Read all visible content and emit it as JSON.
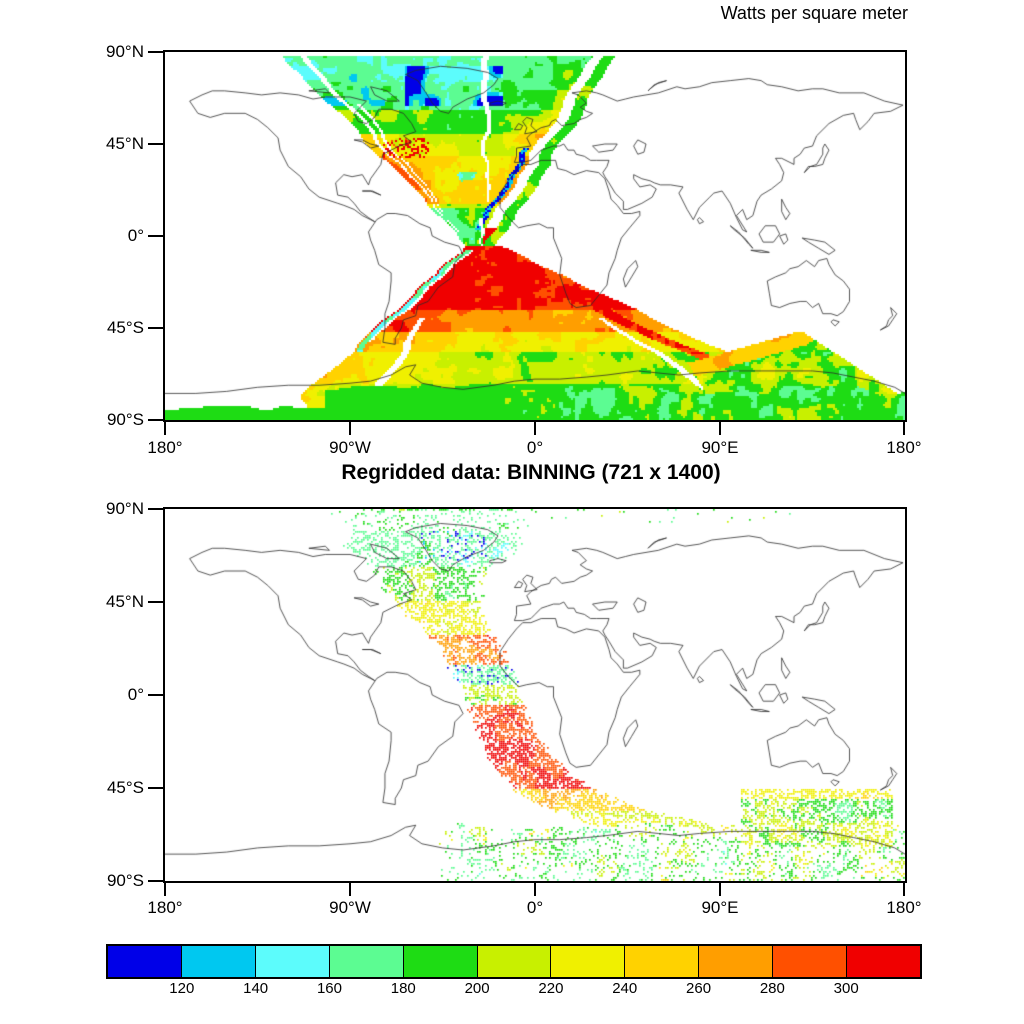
{
  "header": {
    "units_title": "Watts per square meter"
  },
  "mid_title": "Regridded data: BINNING (721 x 1400)",
  "axes": {
    "lat_labels": [
      "90°N",
      "45°N",
      "0°",
      "45°S",
      "90°S"
    ],
    "lon_labels": [
      "180°",
      "90°W",
      "0°",
      "90°E",
      "180°"
    ]
  },
  "colorbar": {
    "labels": [
      "120",
      "140",
      "160",
      "180",
      "200",
      "220",
      "240",
      "260",
      "280",
      "300"
    ],
    "colors": [
      "#0000E8",
      "#00C8F0",
      "#5CFCFC",
      "#5CFC92",
      "#1EDC14",
      "#C8F000",
      "#F0F000",
      "#FFD200",
      "#FF9E00",
      "#FF5000",
      "#F00000"
    ]
  },
  "chart_data": {
    "type": "heatmap",
    "title": "Regridded data: BINNING (721 x 1400)",
    "units": "Watts per square meter",
    "projection": "cylindrical equidistant",
    "lon_range": [
      -180,
      180
    ],
    "lat_range": [
      -90,
      90
    ],
    "lon_ticks_deg": [
      -180,
      -90,
      0,
      90,
      180
    ],
    "lat_ticks_deg": [
      90,
      45,
      0,
      -45,
      -90
    ],
    "levels_w_m2": [
      120,
      140,
      160,
      180,
      200,
      220,
      240,
      260,
      280,
      300
    ],
    "palette": [
      "#0000E8",
      "#00C8F0",
      "#5CFCFC",
      "#5CFC92",
      "#1EDC14",
      "#C8F000",
      "#F0F000",
      "#FFD200",
      "#FF9E00",
      "#FF5000",
      "#F00000"
    ],
    "panels": [
      {
        "name": "original satellite swath data (hourglass-shaped crossing orbits over the Atlantic)",
        "render": "filled",
        "lat_band_levels": [
          [
            76,
            90,
            2.8
          ],
          [
            62,
            76,
            3.1
          ],
          [
            50,
            62,
            4.3
          ],
          [
            40,
            50,
            5.3
          ],
          [
            28,
            40,
            6.5
          ],
          [
            16,
            28,
            6.9
          ],
          [
            4,
            16,
            4.6
          ],
          [
            -36,
            4,
            9.4
          ],
          [
            -46,
            -36,
            8.1
          ],
          [
            -56,
            -46,
            6.3
          ],
          [
            -72,
            -56,
            5.0
          ],
          [
            -90,
            -72,
            4.2
          ]
        ]
      },
      {
        "name": "regridded data: BINNING (721 x 1400), single stippled swath plus Antarctic band",
        "render": "stippled",
        "grid": "721 x 1400",
        "lat_band_levels": [
          [
            80,
            90,
            3.4,
            0.2
          ],
          [
            62,
            80,
            3.0,
            0.45
          ],
          [
            46,
            62,
            4.3,
            0.5
          ],
          [
            30,
            46,
            5.8,
            0.55
          ],
          [
            15,
            30,
            8.7,
            0.62
          ],
          [
            5,
            15,
            2.9,
            0.55
          ],
          [
            -4,
            5,
            5.0,
            0.5
          ],
          [
            -45,
            -4,
            9.5,
            0.75
          ],
          [
            -56,
            -45,
            7.3,
            0.6
          ],
          [
            -90,
            -56,
            5.8,
            0.5
          ]
        ],
        "swath_center_lon_by_lat": [
          [
            90,
            -48
          ],
          [
            70,
            -50
          ],
          [
            54,
            -52
          ],
          [
            40,
            -45
          ],
          [
            30,
            -37
          ],
          [
            20,
            -30
          ],
          [
            10,
            -25
          ],
          [
            0,
            -21
          ],
          [
            -10,
            -17
          ],
          [
            -20,
            -13
          ],
          [
            -30,
            -7
          ],
          [
            -40,
            2
          ],
          [
            -48,
            14
          ],
          [
            -55,
            30
          ],
          [
            -62,
            55
          ],
          [
            -66,
            78
          ]
        ]
      }
    ]
  }
}
